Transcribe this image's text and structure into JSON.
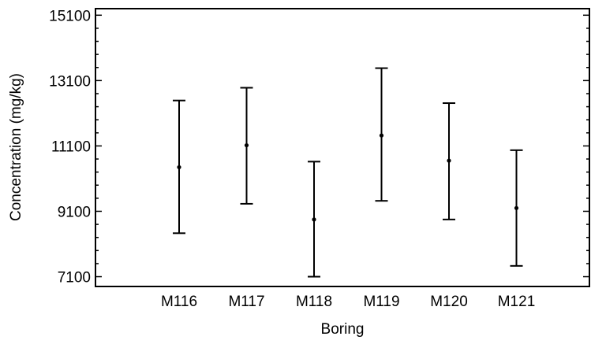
{
  "chart_data": {
    "type": "interval",
    "title": "",
    "xlabel": "Boring",
    "ylabel": "Concentration (mg/kg)",
    "categories": [
      "M116",
      "M117",
      "M118",
      "M119",
      "M120",
      "M121"
    ],
    "means": [
      10450,
      11120,
      8850,
      11420,
      10650,
      9200
    ],
    "lower": [
      8430,
      9330,
      7100,
      9420,
      8850,
      7430
    ],
    "upper": [
      12490,
      12880,
      10620,
      13480,
      12410,
      10970
    ],
    "yticks": [
      7100,
      9100,
      11100,
      13100,
      15100
    ],
    "ylim": [
      6800,
      15300
    ],
    "grid": false,
    "colors": {
      "line": "#000000",
      "background": "#ffffff"
    }
  }
}
